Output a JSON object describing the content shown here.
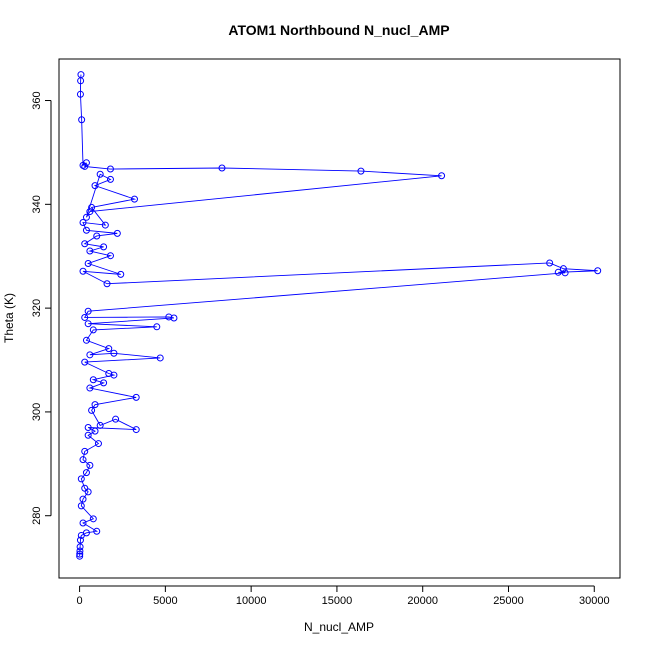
{
  "chart_data": {
    "type": "line",
    "title": "ATOM1 Northbound N_nucl_AMP",
    "xlabel": "N_nucl_AMP",
    "ylabel": "Theta (K)",
    "xlim": [
      -1200,
      31500
    ],
    "ylim": [
      268,
      368
    ],
    "x_ticks": [
      0,
      5000,
      10000,
      15000,
      20000,
      25000,
      30000
    ],
    "x_tick_labels": [
      "0",
      "5000",
      "10000",
      "15000",
      "20000",
      "25000",
      "30000"
    ],
    "y_ticks": [
      280,
      300,
      320,
      340,
      360
    ],
    "y_tick_labels": [
      "280",
      "300",
      "320",
      "340",
      "360"
    ],
    "grid": false,
    "marker": "open-circle",
    "color": "#0000ff",
    "series": [
      {
        "points": [
          [
            80,
            365.0
          ],
          [
            60,
            363.8
          ],
          [
            50,
            361.2
          ],
          [
            120,
            356.3
          ],
          [
            200,
            347.5
          ],
          [
            400,
            348.0
          ],
          [
            300,
            347.3
          ],
          [
            1800,
            346.8
          ],
          [
            8300,
            347.0
          ],
          [
            16400,
            346.4
          ],
          [
            21100,
            345.5
          ],
          [
            600,
            338.6
          ],
          [
            400,
            337.5
          ],
          [
            1200,
            345.8
          ],
          [
            1800,
            344.8
          ],
          [
            900,
            343.6
          ],
          [
            3200,
            341.0
          ],
          [
            700,
            339.4
          ],
          [
            1500,
            336.0
          ],
          [
            200,
            336.5
          ],
          [
            400,
            335.0
          ],
          [
            2200,
            334.4
          ],
          [
            1000,
            333.9
          ],
          [
            300,
            332.4
          ],
          [
            1400,
            331.8
          ],
          [
            600,
            331.0
          ],
          [
            1800,
            330.1
          ],
          [
            500,
            328.6
          ],
          [
            2400,
            326.5
          ],
          [
            200,
            327.1
          ],
          [
            1600,
            324.7
          ],
          [
            27400,
            328.7
          ],
          [
            28200,
            327.6
          ],
          [
            30200,
            327.2
          ],
          [
            27900,
            326.9
          ],
          [
            28300,
            326.8
          ],
          [
            500,
            319.4
          ],
          [
            300,
            318.2
          ],
          [
            5200,
            318.3
          ],
          [
            5500,
            318.1
          ],
          [
            500,
            317.0
          ],
          [
            4500,
            316.4
          ],
          [
            800,
            315.8
          ],
          [
            400,
            313.8
          ],
          [
            1700,
            312.2
          ],
          [
            600,
            311.0
          ],
          [
            2000,
            311.3
          ],
          [
            4700,
            310.4
          ],
          [
            300,
            309.6
          ],
          [
            1700,
            307.4
          ],
          [
            2000,
            307.1
          ],
          [
            800,
            306.2
          ],
          [
            1400,
            305.6
          ],
          [
            600,
            304.6
          ],
          [
            3300,
            302.8
          ],
          [
            900,
            301.4
          ],
          [
            700,
            300.3
          ],
          [
            1200,
            297.4
          ],
          [
            2100,
            298.6
          ],
          [
            3300,
            296.6
          ],
          [
            500,
            297.0
          ],
          [
            900,
            296.3
          ],
          [
            500,
            295.5
          ],
          [
            1100,
            293.9
          ],
          [
            300,
            292.4
          ],
          [
            200,
            290.8
          ],
          [
            600,
            289.7
          ],
          [
            400,
            288.3
          ],
          [
            100,
            287.1
          ],
          [
            300,
            285.3
          ],
          [
            500,
            284.6
          ],
          [
            200,
            283.2
          ],
          [
            100,
            281.9
          ],
          [
            800,
            279.4
          ],
          [
            200,
            278.6
          ],
          [
            1000,
            277.0
          ],
          [
            400,
            276.7
          ],
          [
            100,
            276.2
          ],
          [
            50,
            275.3
          ],
          [
            30,
            274.0
          ],
          [
            20,
            273.2
          ],
          [
            10,
            272.6
          ],
          [
            5,
            272.2
          ]
        ]
      }
    ]
  }
}
